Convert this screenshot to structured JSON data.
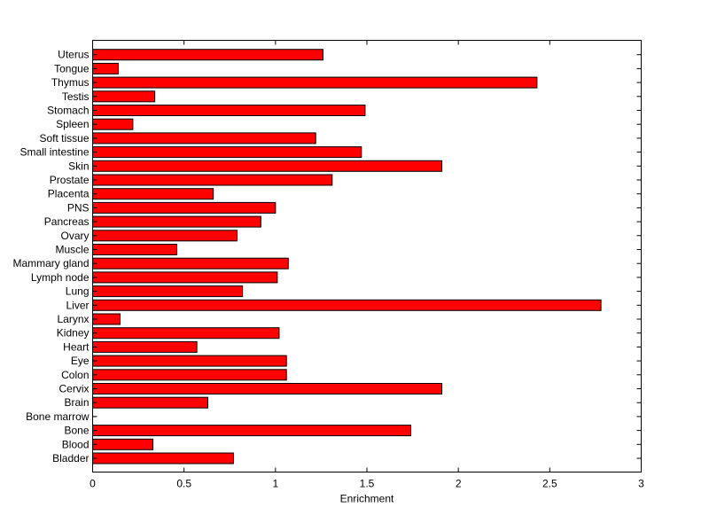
{
  "chart_data": {
    "type": "bar",
    "orientation": "horizontal",
    "categories": [
      "Bladder",
      "Blood",
      "Bone",
      "Bone marrow",
      "Brain",
      "Cervix",
      "Colon",
      "Eye",
      "Heart",
      "Kidney",
      "Larynx",
      "Liver",
      "Lung",
      "Lymph node",
      "Mammary gland",
      "Muscle",
      "Ovary",
      "Pancreas",
      "PNS",
      "Placenta",
      "Prostate",
      "Skin",
      "Small intestine",
      "Soft tissue",
      "Spleen",
      "Stomach",
      "Testis",
      "Thymus",
      "Tongue",
      "Uterus"
    ],
    "values": [
      0.77,
      0.33,
      1.74,
      0.0,
      0.63,
      1.91,
      1.06,
      1.06,
      0.57,
      1.02,
      0.15,
      2.78,
      0.82,
      1.01,
      1.07,
      0.46,
      0.79,
      0.92,
      1.0,
      0.66,
      1.31,
      1.91,
      1.47,
      1.22,
      0.22,
      1.49,
      0.34,
      2.43,
      0.14,
      1.26
    ],
    "title": "",
    "xlabel": "Enrichment",
    "ylabel": "",
    "xlim": [
      0,
      3
    ],
    "xticks": [
      0,
      0.5,
      1,
      1.5,
      2,
      2.5,
      3
    ],
    "xtick_labels": [
      "0",
      "0.5",
      "1",
      "1.5",
      "2",
      "2.5",
      "3"
    ],
    "grid": false,
    "colors": {
      "bar_fill": "#ff0000",
      "bar_stroke": "#000000",
      "axes": "#000000",
      "background": "#ffffff"
    }
  }
}
